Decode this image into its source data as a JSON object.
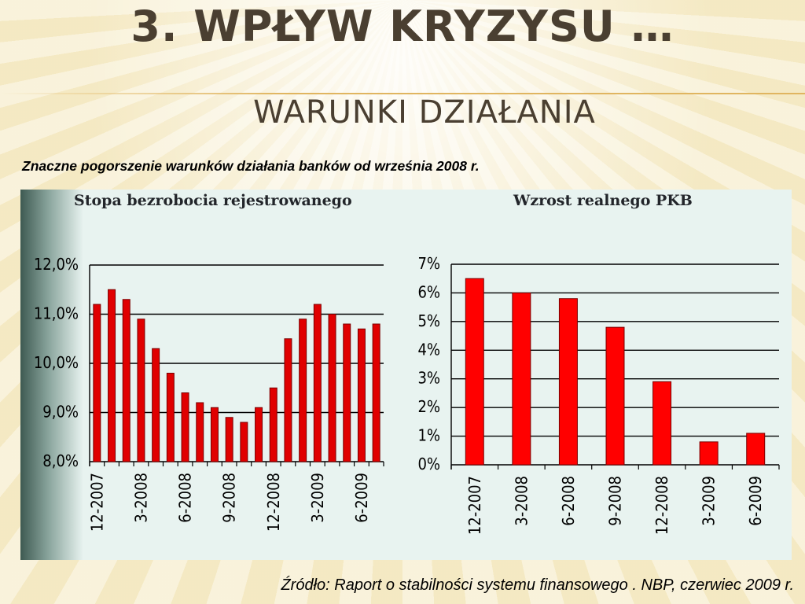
{
  "slide": {
    "title": "3. WPŁYW KRYZYSU …",
    "subtitle": "WARUNKI DZIAŁANIA",
    "lead": "Znaczne pogorszenie warunków działania banków od września 2008 r.",
    "source": "Źródło: Raport o stabilności systemu finansowego . NBP, czerwiec 2009 r."
  },
  "chart_data": [
    {
      "type": "bar",
      "title": "Stopa bezrobocia rejestrowanego",
      "xlabel": "",
      "ylabel": "",
      "ylim": [
        8.0,
        12.0
      ],
      "y_ticks": [
        "8,0%",
        "9,0%",
        "10,0%",
        "11,0%",
        "12,0%"
      ],
      "x_tick_labels": [
        "12-2007",
        "3-2008",
        "6-2008",
        "9-2008",
        "12-2008",
        "3-2009",
        "6-2009"
      ],
      "categories": [
        "12-2007",
        "1-2008",
        "2-2008",
        "3-2008",
        "4-2008",
        "5-2008",
        "6-2008",
        "7-2008",
        "8-2008",
        "9-2008",
        "10-2008",
        "11-2008",
        "12-2008",
        "1-2009",
        "2-2009",
        "3-2009",
        "4-2009",
        "5-2009",
        "6-2009",
        "7-2009"
      ],
      "values": [
        11.2,
        11.5,
        11.3,
        10.9,
        10.3,
        9.8,
        9.4,
        9.2,
        9.1,
        8.9,
        8.8,
        9.1,
        9.5,
        10.5,
        10.9,
        11.2,
        11.0,
        10.8,
        10.7,
        10.8
      ],
      "bar_color": "#e00000",
      "grid": true
    },
    {
      "type": "bar",
      "title": "Wzrost realnego PKB",
      "xlabel": "",
      "ylabel": "",
      "ylim": [
        0,
        7
      ],
      "y_ticks": [
        "0%",
        "1%",
        "2%",
        "3%",
        "4%",
        "5%",
        "6%",
        "7%"
      ],
      "categories": [
        "12-2007",
        "3-2008",
        "6-2008",
        "9-2008",
        "12-2008",
        "3-2009",
        "6-2009"
      ],
      "values": [
        6.5,
        6.0,
        5.8,
        4.8,
        2.9,
        0.8,
        1.1
      ],
      "bar_color": "#ff0000",
      "grid": true
    }
  ]
}
